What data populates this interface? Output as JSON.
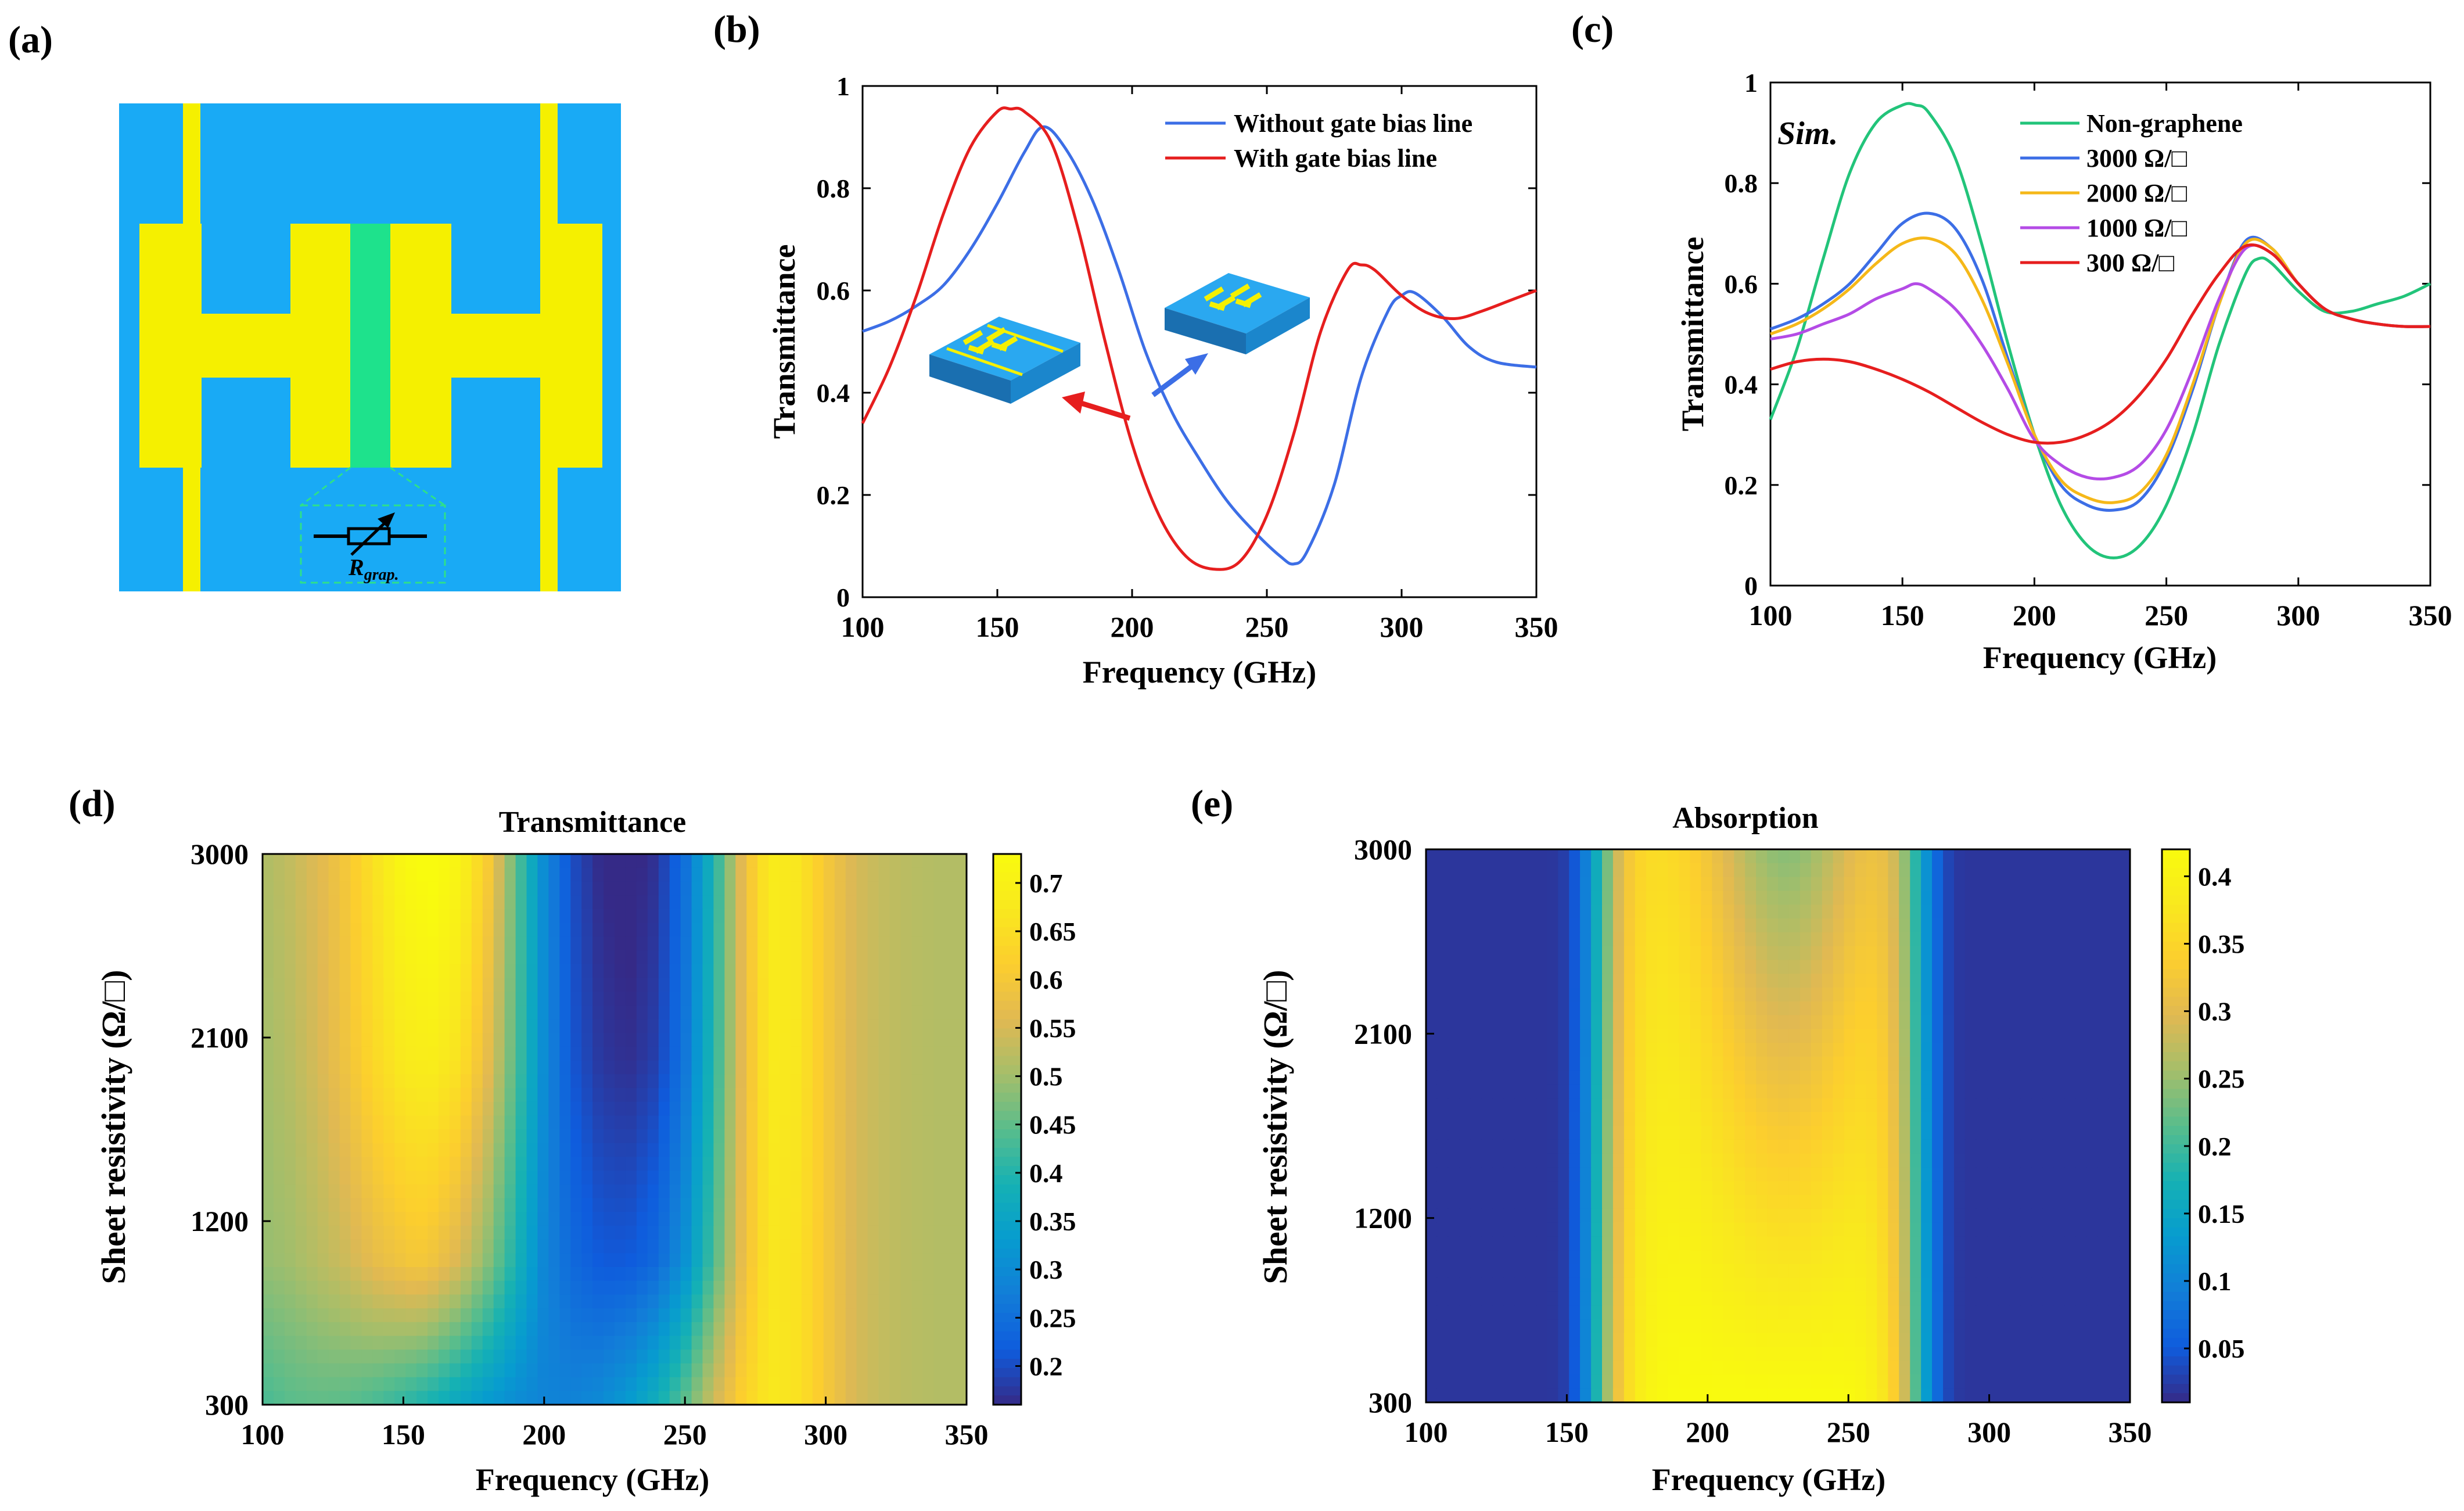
{
  "colors": {
    "cyan": "#19aaf5",
    "yellow": "#f5f000",
    "graphene": "#1ee28c",
    "blue": "#3c6ee6",
    "red": "#e61e1e",
    "green": "#22c47a",
    "orange": "#f5b819",
    "purple": "#b44be6"
  },
  "panel_a": {
    "label": "(a)",
    "resistor_label": "R",
    "resistor_sub": "grap."
  },
  "panel_labels": {
    "b": "(b)",
    "c": "(c)",
    "d": "(d)",
    "e": "(e)"
  },
  "chart_data": [
    {
      "id": "b",
      "type": "line",
      "title": "",
      "xlabel": "Frequency (GHz)",
      "ylabel": "Transmittance",
      "xlim": [
        100,
        350
      ],
      "ylim": [
        0,
        1
      ],
      "xticks": [
        100,
        150,
        200,
        250,
        300,
        350
      ],
      "yticks": [
        0,
        0.2,
        0.4,
        0.6,
        0.8,
        1
      ],
      "legend_position": "top-right",
      "inset_note": "two unit-cell sketches with arrows pointing to the curves",
      "series": [
        {
          "name": "Without gate bias line",
          "color": "#3c6ee6",
          "x": [
            100,
            110,
            120,
            130,
            140,
            150,
            160,
            167,
            175,
            185,
            195,
            205,
            215,
            225,
            235,
            245,
            255,
            260,
            265,
            275,
            285,
            295,
            300,
            305,
            315,
            325,
            335,
            350
          ],
          "y": [
            0.52,
            0.54,
            0.57,
            0.61,
            0.68,
            0.77,
            0.87,
            0.92,
            0.88,
            0.78,
            0.64,
            0.48,
            0.36,
            0.27,
            0.19,
            0.13,
            0.08,
            0.065,
            0.09,
            0.22,
            0.43,
            0.56,
            0.59,
            0.595,
            0.55,
            0.49,
            0.46,
            0.45
          ]
        },
        {
          "name": "With gate bias line",
          "color": "#e61e1e",
          "x": [
            100,
            110,
            120,
            130,
            140,
            150,
            155,
            160,
            170,
            180,
            190,
            200,
            210,
            220,
            230,
            240,
            250,
            260,
            270,
            280,
            285,
            290,
            300,
            310,
            320,
            330,
            340,
            350
          ],
          "y": [
            0.34,
            0.45,
            0.59,
            0.75,
            0.88,
            0.95,
            0.955,
            0.95,
            0.89,
            0.72,
            0.5,
            0.3,
            0.16,
            0.08,
            0.055,
            0.07,
            0.16,
            0.32,
            0.52,
            0.64,
            0.65,
            0.64,
            0.59,
            0.555,
            0.545,
            0.56,
            0.58,
            0.6
          ]
        }
      ]
    },
    {
      "id": "c",
      "type": "line",
      "title": "",
      "annotation": "Sim.",
      "xlabel": "Frequency (GHz)",
      "ylabel": "Transmittance",
      "xlim": [
        100,
        350
      ],
      "ylim": [
        0,
        1
      ],
      "xticks": [
        100,
        150,
        200,
        250,
        300,
        350
      ],
      "yticks": [
        0,
        0.2,
        0.4,
        0.6,
        0.8,
        1
      ],
      "legend_position": "top-right",
      "series": [
        {
          "name": "Non-graphene",
          "color": "#22c47a",
          "x": [
            100,
            110,
            120,
            130,
            140,
            150,
            155,
            160,
            170,
            180,
            190,
            200,
            210,
            220,
            230,
            240,
            250,
            260,
            270,
            280,
            285,
            290,
            300,
            310,
            320,
            330,
            340,
            350
          ],
          "y": [
            0.33,
            0.47,
            0.65,
            0.82,
            0.92,
            0.955,
            0.955,
            0.94,
            0.85,
            0.68,
            0.48,
            0.3,
            0.16,
            0.08,
            0.055,
            0.08,
            0.16,
            0.3,
            0.48,
            0.62,
            0.65,
            0.64,
            0.585,
            0.545,
            0.545,
            0.56,
            0.575,
            0.6
          ]
        },
        {
          "name": "3000 Ω/□",
          "color": "#3c6ee6",
          "x": [
            100,
            110,
            120,
            130,
            140,
            150,
            160,
            170,
            180,
            190,
            200,
            210,
            220,
            230,
            240,
            250,
            260,
            270,
            280,
            290,
            300,
            310,
            320,
            330,
            340,
            350
          ],
          "y": [
            0.51,
            0.53,
            0.56,
            0.6,
            0.66,
            0.72,
            0.74,
            0.71,
            0.61,
            0.45,
            0.3,
            0.2,
            0.16,
            0.15,
            0.17,
            0.25,
            0.39,
            0.56,
            0.685,
            0.67,
            0.6,
            0.55,
            0.53,
            0.52,
            0.515,
            0.515
          ]
        },
        {
          "name": "2000 Ω/□",
          "color": "#f5b819",
          "x": [
            100,
            110,
            120,
            130,
            140,
            150,
            160,
            170,
            180,
            190,
            200,
            210,
            220,
            230,
            240,
            250,
            260,
            270,
            280,
            290,
            300,
            310,
            320,
            330,
            340,
            350
          ],
          "y": [
            0.5,
            0.52,
            0.55,
            0.59,
            0.64,
            0.68,
            0.69,
            0.66,
            0.57,
            0.44,
            0.3,
            0.21,
            0.175,
            0.165,
            0.185,
            0.26,
            0.4,
            0.56,
            0.68,
            0.67,
            0.6,
            0.55,
            0.53,
            0.52,
            0.515,
            0.515
          ]
        },
        {
          "name": "1000 Ω/□",
          "color": "#b44be6",
          "x": [
            100,
            110,
            120,
            130,
            140,
            150,
            155,
            160,
            170,
            180,
            190,
            200,
            210,
            220,
            230,
            240,
            250,
            260,
            270,
            280,
            290,
            300,
            310,
            320,
            330,
            340,
            350
          ],
          "y": [
            0.49,
            0.5,
            0.52,
            0.54,
            0.57,
            0.59,
            0.6,
            0.59,
            0.55,
            0.48,
            0.39,
            0.29,
            0.24,
            0.215,
            0.215,
            0.24,
            0.31,
            0.43,
            0.57,
            0.67,
            0.66,
            0.6,
            0.55,
            0.53,
            0.52,
            0.515,
            0.515
          ]
        },
        {
          "name": "300 Ω/□",
          "color": "#e61e1e",
          "x": [
            100,
            110,
            120,
            130,
            140,
            150,
            160,
            170,
            180,
            190,
            200,
            210,
            220,
            230,
            240,
            250,
            260,
            270,
            280,
            290,
            300,
            310,
            320,
            330,
            340,
            350
          ],
          "y": [
            0.43,
            0.445,
            0.45,
            0.445,
            0.43,
            0.41,
            0.385,
            0.355,
            0.325,
            0.3,
            0.285,
            0.285,
            0.3,
            0.33,
            0.38,
            0.45,
            0.54,
            0.62,
            0.675,
            0.66,
            0.6,
            0.55,
            0.53,
            0.52,
            0.515,
            0.515
          ]
        }
      ]
    },
    {
      "id": "d",
      "type": "heatmap",
      "title": "Transmittance",
      "xlabel": "Frequency (GHz)",
      "ylabel": "Sheet resistivity (Ω/□)",
      "xlim": [
        100,
        350
      ],
      "ylim": [
        300,
        3000
      ],
      "xticks": [
        100,
        150,
        200,
        250,
        300,
        350
      ],
      "yticks": [
        300,
        1200,
        2100,
        3000
      ],
      "colormap": "parula",
      "clim": [
        0.16,
        0.73
      ],
      "colorbar_ticks": [
        "0.2",
        "0.25",
        "0.3",
        "0.35",
        "0.4",
        "0.45",
        "0.5",
        "0.55",
        "0.6",
        "0.65",
        "0.7"
      ]
    },
    {
      "id": "e",
      "type": "heatmap",
      "title": "Absorption",
      "xlabel": "Frequency (GHz)",
      "ylabel": "Sheet resistivity (Ω/□)",
      "xlim": [
        100,
        350
      ],
      "ylim": [
        300,
        3000
      ],
      "xticks": [
        100,
        150,
        200,
        250,
        300,
        350
      ],
      "yticks": [
        300,
        1200,
        2100,
        3000
      ],
      "colormap": "parula",
      "clim": [
        0.01,
        0.42
      ],
      "colorbar_ticks": [
        "0.05",
        "0.1",
        "0.15",
        "0.2",
        "0.25",
        "0.3",
        "0.35",
        "0.4"
      ]
    }
  ]
}
